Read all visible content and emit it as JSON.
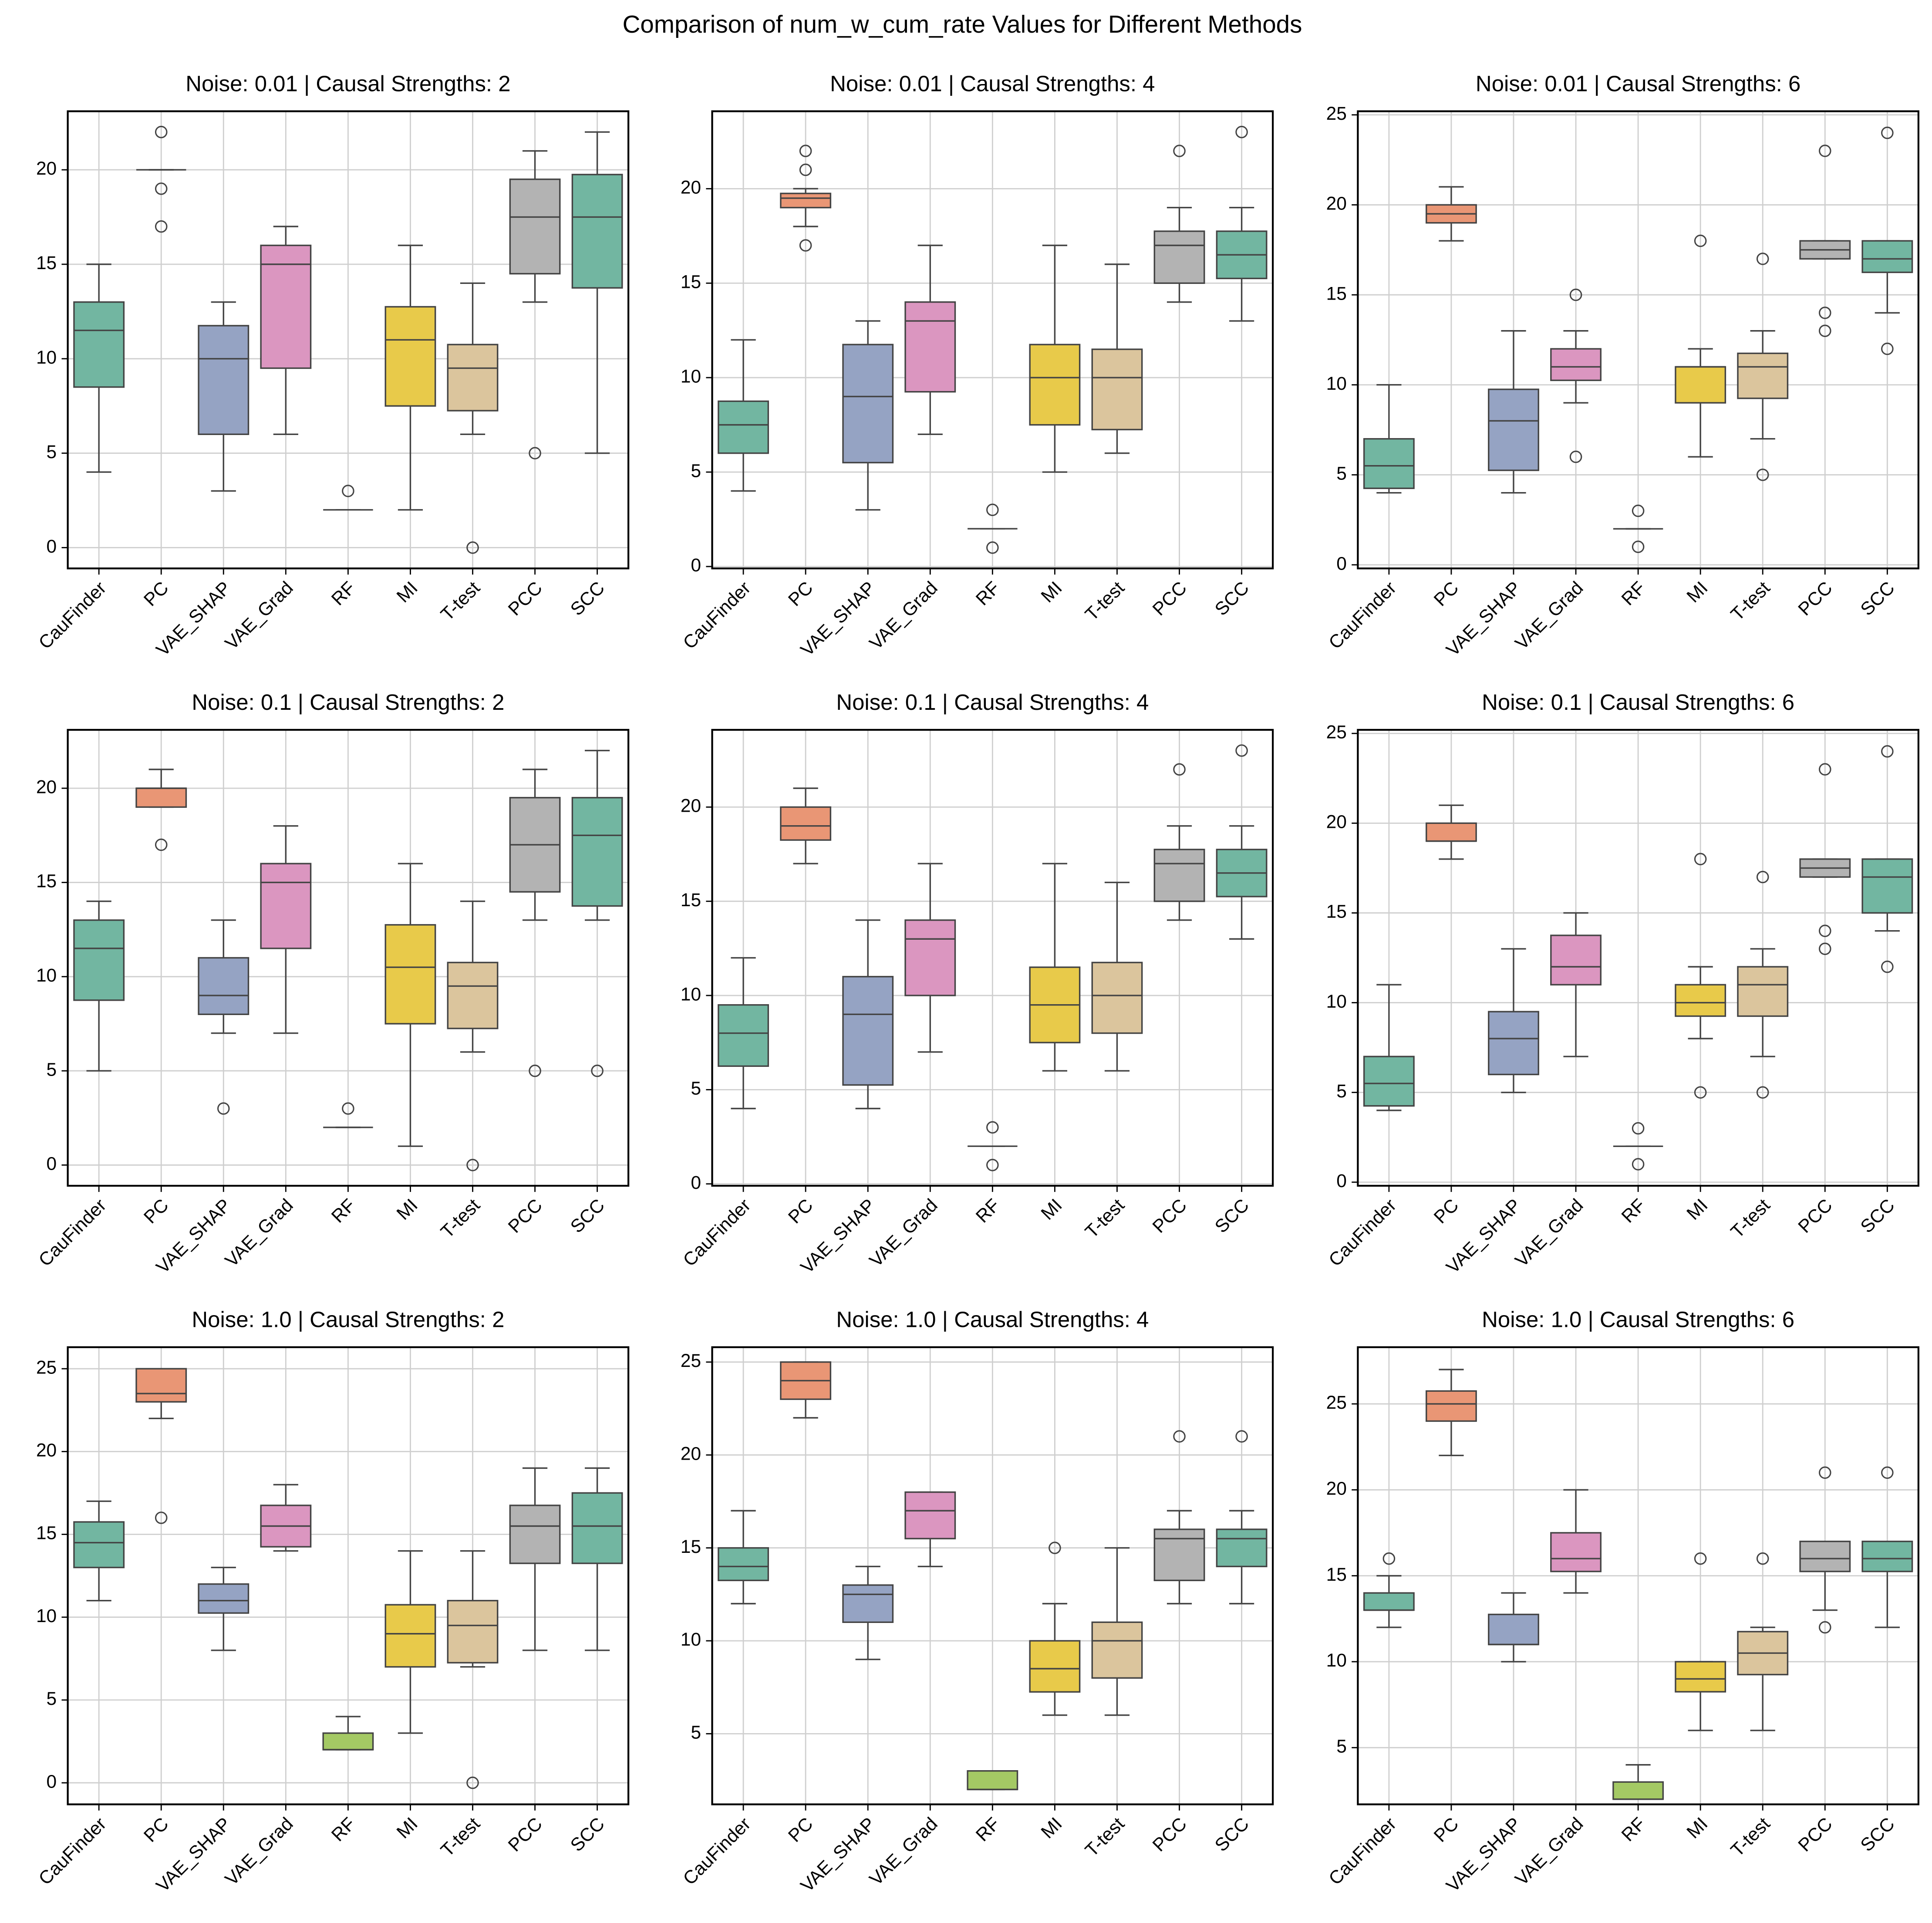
{
  "title": "Comparison of num_w_cum_rate Values for Different Methods",
  "chart_data": [
    {
      "type": "box",
      "title": "Noise: 0.01 | Causal Strengths: 2",
      "categories": [
        "CauFinder",
        "PC",
        "VAE_SHAP",
        "VAE_Grad",
        "RF",
        "MI",
        "T-test",
        "PCC",
        "SCC"
      ],
      "colors": [
        "#72b6a1",
        "#e99675",
        "#95a3c3",
        "#db96c0",
        "#a4c964",
        "#e8ca4a",
        "#dbc59d",
        "#b3b3b3",
        "#72b6a1"
      ],
      "boxes": [
        {
          "whislo": 4,
          "q1": 8.5,
          "med": 11.5,
          "q3": 13,
          "whishi": 15,
          "fliers": []
        },
        {
          "whislo": 20,
          "q1": 20,
          "med": 20,
          "q3": 20,
          "whishi": 20,
          "fliers": [
            22,
            19,
            17
          ]
        },
        {
          "whislo": 3,
          "q1": 6,
          "med": 10,
          "q3": 11.75,
          "whishi": 13,
          "fliers": []
        },
        {
          "whislo": 6,
          "q1": 9.5,
          "med": 15,
          "q3": 16,
          "whishi": 17,
          "fliers": []
        },
        {
          "whislo": 2,
          "q1": 2,
          "med": 2,
          "q3": 2,
          "whishi": 2,
          "fliers": [
            3
          ]
        },
        {
          "whislo": 2,
          "q1": 7.5,
          "med": 11,
          "q3": 12.75,
          "whishi": 16,
          "fliers": []
        },
        {
          "whislo": 6,
          "q1": 7.25,
          "med": 9.5,
          "q3": 10.75,
          "whishi": 14,
          "fliers": [
            0
          ]
        },
        {
          "whislo": 13,
          "q1": 14.5,
          "med": 17.5,
          "q3": 19.5,
          "whishi": 21,
          "fliers": [
            5
          ]
        },
        {
          "whislo": 5,
          "q1": 13.75,
          "med": 17.5,
          "q3": 19.75,
          "whishi": 22,
          "fliers": []
        }
      ],
      "ylim": [
        -1.1,
        23.1
      ],
      "yticks": [
        0,
        5,
        10,
        15,
        20
      ],
      "grid": true
    },
    {
      "type": "box",
      "title": "Noise: 0.01 | Causal Strengths: 4",
      "categories": [
        "CauFinder",
        "PC",
        "VAE_SHAP",
        "VAE_Grad",
        "RF",
        "MI",
        "T-test",
        "PCC",
        "SCC"
      ],
      "colors": [
        "#72b6a1",
        "#e99675",
        "#95a3c3",
        "#db96c0",
        "#a4c964",
        "#e8ca4a",
        "#dbc59d",
        "#b3b3b3",
        "#72b6a1"
      ],
      "boxes": [
        {
          "whislo": 4,
          "q1": 6,
          "med": 7.5,
          "q3": 8.75,
          "whishi": 12,
          "fliers": []
        },
        {
          "whislo": 18,
          "q1": 19,
          "med": 19.5,
          "q3": 19.75,
          "whishi": 20,
          "fliers": [
            22,
            21,
            17
          ]
        },
        {
          "whislo": 3,
          "q1": 5.5,
          "med": 9,
          "q3": 11.75,
          "whishi": 13,
          "fliers": []
        },
        {
          "whislo": 7,
          "q1": 9.25,
          "med": 13,
          "q3": 14,
          "whishi": 17,
          "fliers": []
        },
        {
          "whislo": 2,
          "q1": 2,
          "med": 2,
          "q3": 2,
          "whishi": 2,
          "fliers": [
            3,
            1
          ]
        },
        {
          "whislo": 5,
          "q1": 7.5,
          "med": 10,
          "q3": 11.75,
          "whishi": 17,
          "fliers": []
        },
        {
          "whislo": 6,
          "q1": 7.25,
          "med": 10,
          "q3": 11.5,
          "whishi": 16,
          "fliers": []
        },
        {
          "whislo": 14,
          "q1": 15,
          "med": 17,
          "q3": 17.75,
          "whishi": 19,
          "fliers": [
            22
          ]
        },
        {
          "whislo": 13,
          "q1": 15.25,
          "med": 16.5,
          "q3": 17.75,
          "whishi": 19,
          "fliers": [
            23
          ]
        }
      ],
      "ylim": [
        -0.1,
        24.1
      ],
      "yticks": [
        0,
        5,
        10,
        15,
        20
      ],
      "grid": true
    },
    {
      "type": "box",
      "title": "Noise: 0.01 | Causal Strengths: 6",
      "categories": [
        "CauFinder",
        "PC",
        "VAE_SHAP",
        "VAE_Grad",
        "RF",
        "MI",
        "T-test",
        "PCC",
        "SCC"
      ],
      "colors": [
        "#72b6a1",
        "#e99675",
        "#95a3c3",
        "#db96c0",
        "#a4c964",
        "#e8ca4a",
        "#dbc59d",
        "#b3b3b3",
        "#72b6a1"
      ],
      "boxes": [
        {
          "whislo": 4,
          "q1": 4.25,
          "med": 5.5,
          "q3": 7,
          "whishi": 10,
          "fliers": []
        },
        {
          "whislo": 18,
          "q1": 19,
          "med": 19.5,
          "q3": 20,
          "whishi": 21,
          "fliers": []
        },
        {
          "whislo": 4,
          "q1": 5.25,
          "med": 8,
          "q3": 9.75,
          "whishi": 13,
          "fliers": []
        },
        {
          "whislo": 9,
          "q1": 10.25,
          "med": 11,
          "q3": 12,
          "whishi": 13,
          "fliers": [
            15,
            6
          ]
        },
        {
          "whislo": 2,
          "q1": 2,
          "med": 2,
          "q3": 2,
          "whishi": 2,
          "fliers": [
            3,
            1
          ]
        },
        {
          "whislo": 6,
          "q1": 9,
          "med": 11,
          "q3": 11,
          "whishi": 12,
          "fliers": [
            18
          ]
        },
        {
          "whislo": 7,
          "q1": 9.25,
          "med": 11,
          "q3": 11.75,
          "whishi": 13,
          "fliers": [
            17,
            5
          ]
        },
        {
          "whislo": 17,
          "q1": 17,
          "med": 17.5,
          "q3": 18,
          "whishi": 18,
          "fliers": [
            23,
            14,
            13
          ]
        },
        {
          "whislo": 14,
          "q1": 16.25,
          "med": 17,
          "q3": 18,
          "whishi": 18,
          "fliers": [
            24,
            12
          ]
        }
      ],
      "ylim": [
        -0.2,
        25.2
      ],
      "yticks": [
        0,
        5,
        10,
        15,
        20,
        25
      ],
      "grid": true
    },
    {
      "type": "box",
      "title": "Noise: 0.1 | Causal Strengths: 2",
      "categories": [
        "CauFinder",
        "PC",
        "VAE_SHAP",
        "VAE_Grad",
        "RF",
        "MI",
        "T-test",
        "PCC",
        "SCC"
      ],
      "colors": [
        "#72b6a1",
        "#e99675",
        "#95a3c3",
        "#db96c0",
        "#a4c964",
        "#e8ca4a",
        "#dbc59d",
        "#b3b3b3",
        "#72b6a1"
      ],
      "boxes": [
        {
          "whislo": 5,
          "q1": 8.75,
          "med": 11.5,
          "q3": 13,
          "whishi": 14,
          "fliers": []
        },
        {
          "whislo": 19,
          "q1": 19,
          "med": 20,
          "q3": 20,
          "whishi": 21,
          "fliers": [
            17
          ]
        },
        {
          "whislo": 7,
          "q1": 8,
          "med": 9,
          "q3": 11,
          "whishi": 13,
          "fliers": [
            3
          ]
        },
        {
          "whislo": 7,
          "q1": 11.5,
          "med": 15,
          "q3": 16,
          "whishi": 18,
          "fliers": []
        },
        {
          "whislo": 2,
          "q1": 2,
          "med": 2,
          "q3": 2,
          "whishi": 2,
          "fliers": [
            3
          ]
        },
        {
          "whislo": 1,
          "q1": 7.5,
          "med": 10.5,
          "q3": 12.75,
          "whishi": 16,
          "fliers": []
        },
        {
          "whislo": 6,
          "q1": 7.25,
          "med": 9.5,
          "q3": 10.75,
          "whishi": 14,
          "fliers": [
            0
          ]
        },
        {
          "whislo": 13,
          "q1": 14.5,
          "med": 17,
          "q3": 19.5,
          "whishi": 21,
          "fliers": [
            5
          ]
        },
        {
          "whislo": 13,
          "q1": 13.75,
          "med": 17.5,
          "q3": 19.5,
          "whishi": 22,
          "fliers": [
            5
          ]
        }
      ],
      "ylim": [
        -1.1,
        23.1
      ],
      "yticks": [
        0,
        5,
        10,
        15,
        20
      ],
      "grid": true
    },
    {
      "type": "box",
      "title": "Noise: 0.1 | Causal Strengths: 4",
      "categories": [
        "CauFinder",
        "PC",
        "VAE_SHAP",
        "VAE_Grad",
        "RF",
        "MI",
        "T-test",
        "PCC",
        "SCC"
      ],
      "colors": [
        "#72b6a1",
        "#e99675",
        "#95a3c3",
        "#db96c0",
        "#a4c964",
        "#e8ca4a",
        "#dbc59d",
        "#b3b3b3",
        "#72b6a1"
      ],
      "boxes": [
        {
          "whislo": 4,
          "q1": 6.25,
          "med": 8,
          "q3": 9.5,
          "whishi": 12,
          "fliers": []
        },
        {
          "whislo": 17,
          "q1": 18.25,
          "med": 19,
          "q3": 20,
          "whishi": 21,
          "fliers": []
        },
        {
          "whislo": 4,
          "q1": 5.25,
          "med": 9,
          "q3": 11,
          "whishi": 14,
          "fliers": []
        },
        {
          "whislo": 7,
          "q1": 10,
          "med": 13,
          "q3": 14,
          "whishi": 17,
          "fliers": []
        },
        {
          "whislo": 2,
          "q1": 2,
          "med": 2,
          "q3": 2,
          "whishi": 2,
          "fliers": [
            3,
            1
          ]
        },
        {
          "whislo": 6,
          "q1": 7.5,
          "med": 9.5,
          "q3": 11.5,
          "whishi": 17,
          "fliers": []
        },
        {
          "whislo": 6,
          "q1": 8,
          "med": 10,
          "q3": 11.75,
          "whishi": 16,
          "fliers": []
        },
        {
          "whislo": 14,
          "q1": 15,
          "med": 17,
          "q3": 17.75,
          "whishi": 19,
          "fliers": [
            22
          ]
        },
        {
          "whislo": 13,
          "q1": 15.25,
          "med": 16.5,
          "q3": 17.75,
          "whishi": 19,
          "fliers": [
            23
          ]
        }
      ],
      "ylim": [
        -0.1,
        24.1
      ],
      "yticks": [
        0,
        5,
        10,
        15,
        20
      ],
      "grid": true
    },
    {
      "type": "box",
      "title": "Noise: 0.1 | Causal Strengths: 6",
      "categories": [
        "CauFinder",
        "PC",
        "VAE_SHAP",
        "VAE_Grad",
        "RF",
        "MI",
        "T-test",
        "PCC",
        "SCC"
      ],
      "colors": [
        "#72b6a1",
        "#e99675",
        "#95a3c3",
        "#db96c0",
        "#a4c964",
        "#e8ca4a",
        "#dbc59d",
        "#b3b3b3",
        "#72b6a1"
      ],
      "boxes": [
        {
          "whislo": 4,
          "q1": 4.25,
          "med": 5.5,
          "q3": 7,
          "whishi": 11,
          "fliers": []
        },
        {
          "whislo": 18,
          "q1": 19,
          "med": 19,
          "q3": 20,
          "whishi": 21,
          "fliers": []
        },
        {
          "whislo": 5,
          "q1": 6,
          "med": 8,
          "q3": 9.5,
          "whishi": 13,
          "fliers": []
        },
        {
          "whislo": 7,
          "q1": 11,
          "med": 12,
          "q3": 13.75,
          "whishi": 15,
          "fliers": []
        },
        {
          "whislo": 2,
          "q1": 2,
          "med": 2,
          "q3": 2,
          "whishi": 2,
          "fliers": [
            3,
            1
          ]
        },
        {
          "whislo": 8,
          "q1": 9.25,
          "med": 10,
          "q3": 11,
          "whishi": 12,
          "fliers": [
            18,
            5
          ]
        },
        {
          "whislo": 7,
          "q1": 9.25,
          "med": 11,
          "q3": 12,
          "whishi": 13,
          "fliers": [
            17,
            5
          ]
        },
        {
          "whislo": 17,
          "q1": 17,
          "med": 17.5,
          "q3": 18,
          "whishi": 18,
          "fliers": [
            23,
            14,
            13
          ]
        },
        {
          "whislo": 14,
          "q1": 15,
          "med": 17,
          "q3": 18,
          "whishi": 18,
          "fliers": [
            24,
            12
          ]
        }
      ],
      "ylim": [
        -0.2,
        25.2
      ],
      "yticks": [
        0,
        5,
        10,
        15,
        20,
        25
      ],
      "grid": true
    },
    {
      "type": "box",
      "title": "Noise: 1.0 | Causal Strengths: 2",
      "categories": [
        "CauFinder",
        "PC",
        "VAE_SHAP",
        "VAE_Grad",
        "RF",
        "MI",
        "T-test",
        "PCC",
        "SCC"
      ],
      "colors": [
        "#72b6a1",
        "#e99675",
        "#95a3c3",
        "#db96c0",
        "#a4c964",
        "#e8ca4a",
        "#dbc59d",
        "#b3b3b3",
        "#72b6a1"
      ],
      "boxes": [
        {
          "whislo": 11,
          "q1": 13,
          "med": 14.5,
          "q3": 15.75,
          "whishi": 17,
          "fliers": []
        },
        {
          "whislo": 22,
          "q1": 23,
          "med": 23.5,
          "q3": 25,
          "whishi": 25,
          "fliers": [
            16
          ]
        },
        {
          "whislo": 8,
          "q1": 10.25,
          "med": 11,
          "q3": 12,
          "whishi": 13,
          "fliers": []
        },
        {
          "whislo": 14,
          "q1": 14.25,
          "med": 15.5,
          "q3": 16.75,
          "whishi": 18,
          "fliers": []
        },
        {
          "whislo": 2,
          "q1": 2,
          "med": 2,
          "q3": 3,
          "whishi": 4,
          "fliers": []
        },
        {
          "whislo": 3,
          "q1": 7,
          "med": 9,
          "q3": 10.75,
          "whishi": 14,
          "fliers": []
        },
        {
          "whislo": 7,
          "q1": 7.25,
          "med": 9.5,
          "q3": 11,
          "whishi": 14,
          "fliers": [
            0
          ]
        },
        {
          "whislo": 8,
          "q1": 13.25,
          "med": 15.5,
          "q3": 16.75,
          "whishi": 19,
          "fliers": []
        },
        {
          "whislo": 8,
          "q1": 13.25,
          "med": 15.5,
          "q3": 17.5,
          "whishi": 19,
          "fliers": []
        }
      ],
      "ylim": [
        -1.3,
        26.3
      ],
      "yticks": [
        0,
        5,
        10,
        15,
        20,
        25
      ],
      "grid": true
    },
    {
      "type": "box",
      "title": "Noise: 1.0 | Causal Strengths: 4",
      "categories": [
        "CauFinder",
        "PC",
        "VAE_SHAP",
        "VAE_Grad",
        "RF",
        "MI",
        "T-test",
        "PCC",
        "SCC"
      ],
      "colors": [
        "#72b6a1",
        "#e99675",
        "#95a3c3",
        "#db96c0",
        "#a4c964",
        "#e8ca4a",
        "#dbc59d",
        "#b3b3b3",
        "#72b6a1"
      ],
      "boxes": [
        {
          "whislo": 12,
          "q1": 13.25,
          "med": 14,
          "q3": 15,
          "whishi": 17,
          "fliers": []
        },
        {
          "whislo": 22,
          "q1": 23,
          "med": 24,
          "q3": 25,
          "whishi": 25,
          "fliers": []
        },
        {
          "whislo": 9,
          "q1": 11,
          "med": 12.5,
          "q3": 13,
          "whishi": 14,
          "fliers": []
        },
        {
          "whislo": 14,
          "q1": 15.5,
          "med": 17,
          "q3": 18,
          "whishi": 18,
          "fliers": []
        },
        {
          "whislo": 2,
          "q1": 2,
          "med": 2,
          "q3": 3,
          "whishi": 3,
          "fliers": []
        },
        {
          "whislo": 6,
          "q1": 7.25,
          "med": 8.5,
          "q3": 10,
          "whishi": 12,
          "fliers": [
            15
          ]
        },
        {
          "whislo": 6,
          "q1": 8,
          "med": 10,
          "q3": 11,
          "whishi": 15,
          "fliers": []
        },
        {
          "whislo": 12,
          "q1": 13.25,
          "med": 15.5,
          "q3": 16,
          "whishi": 17,
          "fliers": [
            21
          ]
        },
        {
          "whislo": 12,
          "q1": 14,
          "med": 15.5,
          "q3": 16,
          "whishi": 17,
          "fliers": [
            21
          ]
        }
      ],
      "ylim": [
        1.2,
        25.8
      ],
      "yticks": [
        5,
        10,
        15,
        20,
        25
      ],
      "grid": true
    },
    {
      "type": "box",
      "title": "Noise: 1.0 | Causal Strengths: 6",
      "categories": [
        "CauFinder",
        "PC",
        "VAE_SHAP",
        "VAE_Grad",
        "RF",
        "MI",
        "T-test",
        "PCC",
        "SCC"
      ],
      "colors": [
        "#72b6a1",
        "#e99675",
        "#95a3c3",
        "#db96c0",
        "#a4c964",
        "#e8ca4a",
        "#dbc59d",
        "#b3b3b3",
        "#72b6a1"
      ],
      "boxes": [
        {
          "whislo": 12,
          "q1": 13,
          "med": 13,
          "q3": 14,
          "whishi": 15,
          "fliers": [
            16
          ]
        },
        {
          "whislo": 22,
          "q1": 24,
          "med": 25,
          "q3": 25.75,
          "whishi": 27,
          "fliers": []
        },
        {
          "whislo": 10,
          "q1": 11,
          "med": 11,
          "q3": 12.75,
          "whishi": 14,
          "fliers": []
        },
        {
          "whislo": 14,
          "q1": 15.25,
          "med": 16,
          "q3": 17.5,
          "whishi": 20,
          "fliers": []
        },
        {
          "whislo": 2,
          "q1": 2,
          "med": 2,
          "q3": 3,
          "whishi": 4,
          "fliers": []
        },
        {
          "whislo": 6,
          "q1": 8.25,
          "med": 9,
          "q3": 10,
          "whishi": 10,
          "fliers": [
            16
          ]
        },
        {
          "whislo": 6,
          "q1": 9.25,
          "med": 10.5,
          "q3": 11.75,
          "whishi": 12,
          "fliers": [
            16
          ]
        },
        {
          "whislo": 13,
          "q1": 15.25,
          "med": 16,
          "q3": 17,
          "whishi": 17,
          "fliers": [
            21,
            12
          ]
        },
        {
          "whislo": 12,
          "q1": 15.25,
          "med": 16,
          "q3": 17,
          "whishi": 17,
          "fliers": [
            21
          ]
        }
      ],
      "ylim": [
        1.7,
        28.3
      ],
      "yticks": [
        5,
        10,
        15,
        20,
        25
      ],
      "grid": true
    }
  ]
}
